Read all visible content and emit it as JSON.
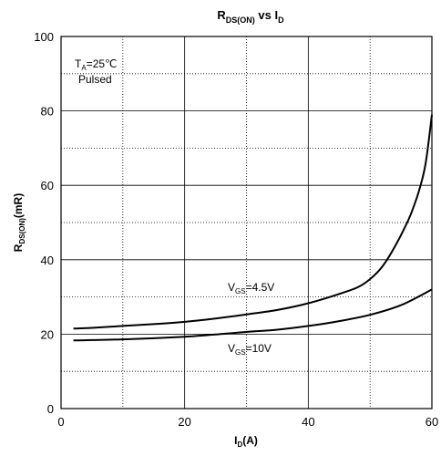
{
  "chart_data": {
    "type": "line",
    "title": {
      "main": "R",
      "main_sub": "DS(ON)",
      "mid": " vs I",
      "end_sub": "D"
    },
    "xlabel": {
      "main": "I",
      "sub": "D",
      "rest": "(A)"
    },
    "ylabel": {
      "main": "R",
      "sub": "DS(ON)",
      "rest": "(mR)"
    },
    "xlim": [
      0,
      60
    ],
    "ylim": [
      0,
      100
    ],
    "x_ticks": [
      0,
      20,
      40,
      60
    ],
    "y_ticks": [
      0,
      20,
      40,
      60,
      80,
      100
    ],
    "x_grid_solid": [
      20,
      40
    ],
    "x_grid_dotted": [
      10,
      30,
      50
    ],
    "y_grid_solid": [
      20,
      40,
      60,
      80
    ],
    "y_grid_dotted": [
      10,
      30,
      50,
      70,
      90
    ],
    "grid": true,
    "annotations": {
      "condition_ta": {
        "main": "T",
        "sub": "A",
        "rest": "=25℃"
      },
      "condition_pulsed": "Pulsed"
    },
    "series": [
      {
        "label": {
          "main": "V",
          "sub": "GS",
          "rest": "=4.5V"
        },
        "x": [
          2,
          5,
          10,
          15,
          20,
          25,
          30,
          35,
          40,
          45,
          48,
          50,
          52,
          54,
          56,
          57,
          58,
          59,
          60
        ],
        "y": [
          21.5,
          21.7,
          22.2,
          22.7,
          23.3,
          24.2,
          25.3,
          26.5,
          28.3,
          30.8,
          32.6,
          34.8,
          38.2,
          43.5,
          50,
          54,
          59,
          66,
          79
        ]
      },
      {
        "label": {
          "main": "V",
          "sub": "GS",
          "rest": "=10V"
        },
        "x": [
          2,
          5,
          10,
          15,
          20,
          25,
          30,
          35,
          40,
          45,
          50,
          55,
          60
        ],
        "y": [
          18.3,
          18.4,
          18.6,
          18.9,
          19.3,
          19.9,
          20.6,
          21.2,
          22.2,
          23.5,
          25.2,
          27.8,
          32
        ]
      }
    ]
  }
}
